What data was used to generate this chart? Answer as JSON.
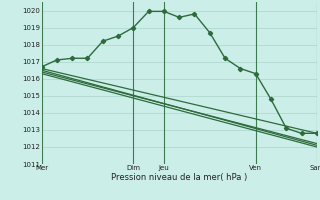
{
  "xlabel": "Pression niveau de la mer( hPa )",
  "bg_color": "#cceee8",
  "grid_color": "#aad4cc",
  "line_color": "#2d6b3c",
  "ylim": [
    1011,
    1020.5
  ],
  "yticks": [
    1011,
    1012,
    1013,
    1014,
    1015,
    1016,
    1017,
    1018,
    1019,
    1020
  ],
  "vline_color": "#3d7a50",
  "series1_x": [
    0,
    1,
    2,
    3,
    4,
    5,
    6,
    7,
    8,
    9,
    10,
    11,
    12,
    13,
    14,
    15,
    16,
    17,
    18
  ],
  "series1_y": [
    1016.7,
    1017.1,
    1017.2,
    1017.2,
    1018.2,
    1018.5,
    1019.0,
    1019.95,
    1019.95,
    1019.6,
    1019.8,
    1018.7,
    1017.2,
    1016.6,
    1016.3,
    1014.8,
    1013.1,
    1012.8,
    1012.8
  ],
  "series2_x": [
    0,
    18
  ],
  "series2_y": [
    1016.6,
    1012.8
  ],
  "series3_x": [
    0,
    18
  ],
  "series3_y": [
    1016.3,
    1012.0
  ],
  "series4_x": [
    0,
    18
  ],
  "series4_y": [
    1016.4,
    1012.2
  ],
  "series5_x": [
    0,
    18
  ],
  "series5_y": [
    1016.5,
    1012.1
  ],
  "xtick_positions": [
    0,
    6,
    8,
    14,
    18
  ],
  "xtick_labels": [
    "Mer",
    "Dim",
    "Jeu",
    "Ven",
    "Sam"
  ],
  "vlines": [
    0,
    6,
    8,
    14,
    18
  ]
}
